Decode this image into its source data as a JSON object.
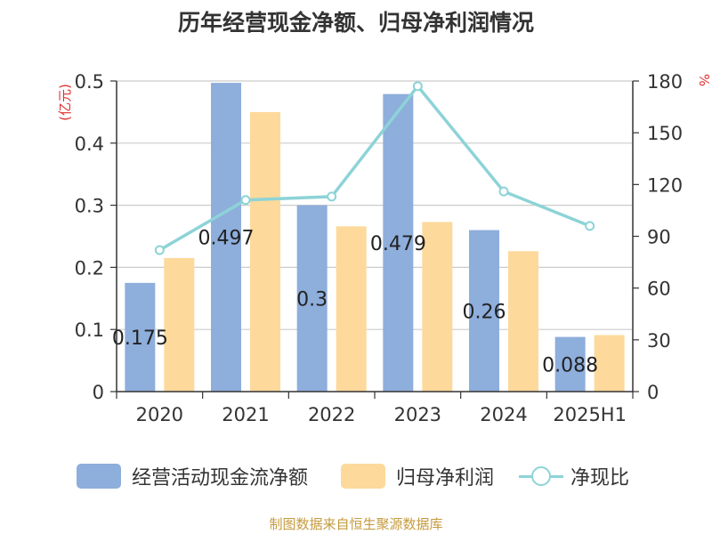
{
  "chart_data": {
    "type": "bar",
    "title": "历年经营现金净额、归母净利润情况",
    "categories": [
      "2020",
      "2021",
      "2022",
      "2023",
      "2024",
      "2025H1"
    ],
    "y_left": {
      "unit_label": "(亿元)",
      "ylim": [
        0,
        0.5
      ],
      "ticks": [
        "0",
        "0.1",
        "0.2",
        "0.3",
        "0.4",
        "0.5"
      ]
    },
    "y_right": {
      "unit_label": "%",
      "ylim": [
        0,
        180
      ],
      "ticks": [
        "0",
        "30",
        "60",
        "90",
        "120",
        "150",
        "180"
      ]
    },
    "grid": true,
    "legend_position": "bottom",
    "series": [
      {
        "name": "经营活动现金流净额",
        "kind": "bar",
        "axis": "left",
        "color": "#8eaedc",
        "values": [
          0.175,
          0.497,
          0.3,
          0.479,
          0.26,
          0.088
        ],
        "data_labels": [
          "0.175",
          "0.497",
          "0.3",
          "0.479",
          "0.26",
          "0.088"
        ]
      },
      {
        "name": "归母净利润",
        "kind": "bar",
        "axis": "left",
        "color": "#fdd99b",
        "values": [
          0.215,
          0.45,
          0.266,
          0.273,
          0.226,
          0.091
        ]
      },
      {
        "name": "净现比",
        "kind": "line",
        "axis": "right",
        "color": "#8dd3d7",
        "values": [
          82,
          111,
          113,
          177,
          116,
          96
        ]
      }
    ]
  },
  "source": "制图数据来自恒生聚源数据库"
}
